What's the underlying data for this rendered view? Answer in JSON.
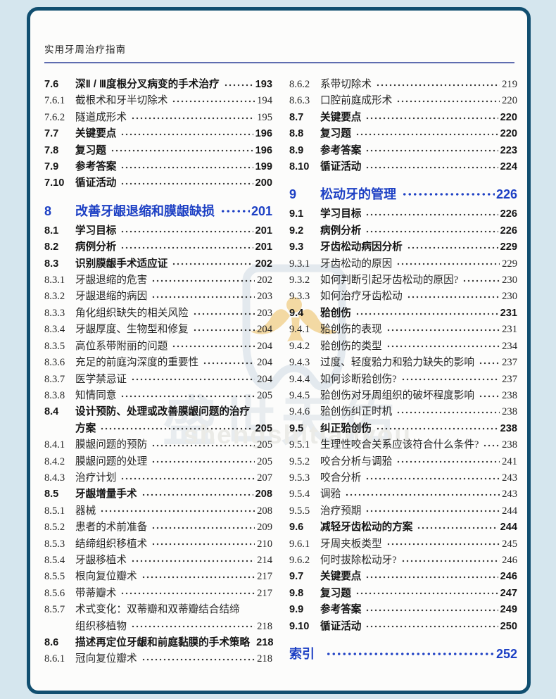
{
  "page": {
    "book_title": "实用牙周治疗指南"
  },
  "watermark": {
    "cn": "盛世天佑",
    "latin": "shengshitianyou"
  },
  "colors": {
    "outer_background": "#d5e6ee",
    "frame_border": "#114f70",
    "page_background": "#fcfcfb",
    "chapter_blue": "#1d40c4",
    "header_rule": "#5f6db0",
    "body_text": "#1c1c1c",
    "watermark_gold": "#f3d9a3",
    "watermark_gray": "#e8ecef"
  },
  "toc": {
    "left": [
      {
        "num": "7.6",
        "title": "深Ⅱ / Ⅲ度根分叉病变的手术治疗",
        "page": "193",
        "level": "section"
      },
      {
        "num": "7.6.1",
        "title": "截根术和牙半切除术",
        "page": "194",
        "level": "sub"
      },
      {
        "num": "7.6.2",
        "title": "隧道成形术",
        "page": "195",
        "level": "sub"
      },
      {
        "num": "7.7",
        "title": "关键要点",
        "page": "196",
        "level": "section"
      },
      {
        "num": "7.8",
        "title": "复习题",
        "page": "196",
        "level": "section"
      },
      {
        "num": "7.9",
        "title": "参考答案",
        "page": "199",
        "level": "section"
      },
      {
        "num": "7.10",
        "title": "循证活动",
        "page": "200",
        "level": "section"
      },
      {
        "num": "8",
        "title": "改善牙龈退缩和膜龈缺损",
        "page": "201",
        "level": "chapter"
      },
      {
        "num": "8.1",
        "title": "学习目标",
        "page": "201",
        "level": "section"
      },
      {
        "num": "8.2",
        "title": "病例分析",
        "page": "201",
        "level": "section"
      },
      {
        "num": "8.3",
        "title": "识别膜龈手术适应证",
        "page": "202",
        "level": "section"
      },
      {
        "num": "8.3.1",
        "title": "牙龈退缩的危害",
        "page": "202",
        "level": "sub"
      },
      {
        "num": "8.3.2",
        "title": "牙龈退缩的病因",
        "page": "203",
        "level": "sub"
      },
      {
        "num": "8.3.3",
        "title": "角化组织缺失的相关风险",
        "page": "203",
        "level": "sub"
      },
      {
        "num": "8.3.4",
        "title": "牙龈厚度、生物型和修复",
        "page": "204",
        "level": "sub"
      },
      {
        "num": "8.3.5",
        "title": "高位系带附丽的问题",
        "page": "204",
        "level": "sub"
      },
      {
        "num": "8.3.6",
        "title": "充足的前庭沟深度的重要性",
        "page": "204",
        "level": "sub"
      },
      {
        "num": "8.3.7",
        "title": "医学禁忌证",
        "page": "204",
        "level": "sub"
      },
      {
        "num": "8.3.8",
        "title": "知情同意",
        "page": "205",
        "level": "sub"
      },
      {
        "num": "8.4",
        "title": "设计预防、处理或改善膜龈问题的治疗",
        "title2": "方案",
        "page": "205",
        "level": "section"
      },
      {
        "num": "8.4.1",
        "title": "膜龈问题的预防",
        "page": "205",
        "level": "sub"
      },
      {
        "num": "8.4.2",
        "title": "膜龈问题的处理",
        "page": "205",
        "level": "sub"
      },
      {
        "num": "8.4.3",
        "title": "治疗计划",
        "page": "207",
        "level": "sub"
      },
      {
        "num": "8.5",
        "title": "牙龈增量手术",
        "page": "208",
        "level": "section"
      },
      {
        "num": "8.5.1",
        "title": "器械",
        "page": "208",
        "level": "sub"
      },
      {
        "num": "8.5.2",
        "title": "患者的术前准备",
        "page": "209",
        "level": "sub"
      },
      {
        "num": "8.5.3",
        "title": "结缔组织移植术",
        "page": "210",
        "level": "sub"
      },
      {
        "num": "8.5.4",
        "title": "牙龈移植术",
        "page": "214",
        "level": "sub"
      },
      {
        "num": "8.5.5",
        "title": "根向复位瓣术",
        "page": "217",
        "level": "sub"
      },
      {
        "num": "8.5.6",
        "title": "带蒂瓣术",
        "page": "217",
        "level": "sub"
      },
      {
        "num": "8.5.7",
        "title": "术式变化：双蒂瓣和双蒂瓣结合结缔",
        "title2": "组织移植物",
        "page": "218",
        "level": "sub"
      },
      {
        "num": "8.6",
        "title": "描述再定位牙龈和前庭黏膜的手术策略",
        "page": "218",
        "level": "section"
      },
      {
        "num": "8.6.1",
        "title": "冠向复位瓣术",
        "page": "218",
        "level": "sub"
      }
    ],
    "right": [
      {
        "num": "8.6.2",
        "title": "系带切除术",
        "page": "219",
        "level": "sub"
      },
      {
        "num": "8.6.3",
        "title": "口腔前庭成形术",
        "page": "220",
        "level": "sub"
      },
      {
        "num": "8.7",
        "title": "关键要点",
        "page": "220",
        "level": "section"
      },
      {
        "num": "8.8",
        "title": "复习题",
        "page": "220",
        "level": "section"
      },
      {
        "num": "8.9",
        "title": "参考答案",
        "page": "223",
        "level": "section"
      },
      {
        "num": "8.10",
        "title": "循证活动",
        "page": "224",
        "level": "section"
      },
      {
        "num": "9",
        "title": "松动牙的管理",
        "page": "226",
        "level": "chapter"
      },
      {
        "num": "9.1",
        "title": "学习目标",
        "page": "226",
        "level": "section"
      },
      {
        "num": "9.2",
        "title": "病例分析",
        "page": "226",
        "level": "section"
      },
      {
        "num": "9.3",
        "title": "牙齿松动病因分析",
        "page": "229",
        "level": "section"
      },
      {
        "num": "9.3.1",
        "title": "牙齿松动的原因",
        "page": "229",
        "level": "sub"
      },
      {
        "num": "9.3.2",
        "title": "如何判断引起牙齿松动的原因?",
        "page": "230",
        "level": "sub"
      },
      {
        "num": "9.3.3",
        "title": "如何治疗牙齿松动",
        "page": "230",
        "level": "sub"
      },
      {
        "num": "9.4",
        "title": "𬌗创伤",
        "page": "231",
        "level": "section"
      },
      {
        "num": "9.4.1",
        "title": "𬌗创伤的表现",
        "page": "231",
        "level": "sub"
      },
      {
        "num": "9.4.2",
        "title": "𬌗创伤的类型",
        "page": "234",
        "level": "sub"
      },
      {
        "num": "9.4.3",
        "title": "过度、轻度𬌗力和𬌗力缺失的影响",
        "page": "237",
        "level": "sub"
      },
      {
        "num": "9.4.4",
        "title": "如何诊断𬌗创伤?",
        "page": "237",
        "level": "sub"
      },
      {
        "num": "9.4.5",
        "title": "𬌗创伤对牙周组织的破坏程度影响",
        "page": "238",
        "level": "sub"
      },
      {
        "num": "9.4.6",
        "title": "𬌗创伤纠正时机",
        "page": "238",
        "level": "sub"
      },
      {
        "num": "9.5",
        "title": "纠正𬌗创伤",
        "page": "238",
        "level": "section"
      },
      {
        "num": "9.5.1",
        "title": "生理性咬合关系应该符合什么条件?",
        "page": "238",
        "level": "sub"
      },
      {
        "num": "9.5.2",
        "title": "咬合分析与调𬌗",
        "page": "241",
        "level": "sub"
      },
      {
        "num": "9.5.3",
        "title": "咬合分析",
        "page": "243",
        "level": "sub"
      },
      {
        "num": "9.5.4",
        "title": "调𬌗",
        "page": "243",
        "level": "sub"
      },
      {
        "num": "9.5.5",
        "title": "治疗预期",
        "page": "244",
        "level": "sub"
      },
      {
        "num": "9.6",
        "title": "减轻牙齿松动的方案",
        "page": "244",
        "level": "section"
      },
      {
        "num": "9.6.1",
        "title": "牙周夹板类型",
        "page": "245",
        "level": "sub"
      },
      {
        "num": "9.6.2",
        "title": "何时拔除松动牙?",
        "page": "246",
        "level": "sub"
      },
      {
        "num": "9.7",
        "title": "关键要点",
        "page": "246",
        "level": "section"
      },
      {
        "num": "9.8",
        "title": "复习题",
        "page": "247",
        "level": "section"
      },
      {
        "num": "9.9",
        "title": "参考答案",
        "page": "249",
        "level": "section"
      },
      {
        "num": "9.10",
        "title": "循证活动",
        "page": "250",
        "level": "section"
      },
      {
        "num": "索引",
        "title": "",
        "page": "252",
        "level": "chapter"
      }
    ]
  }
}
